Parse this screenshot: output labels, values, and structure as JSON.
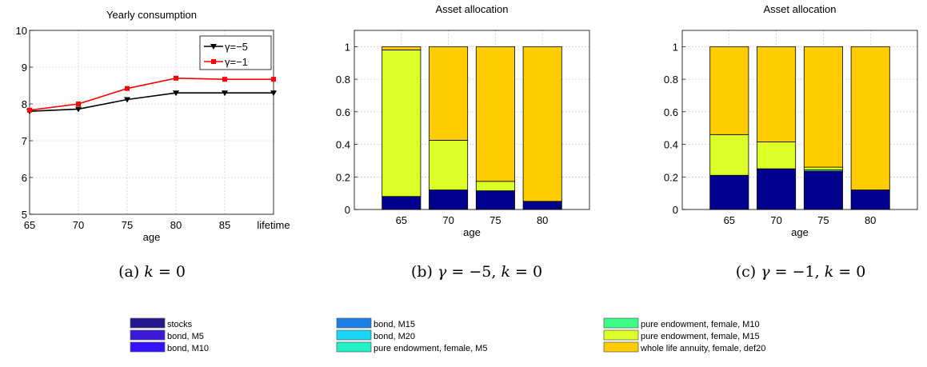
{
  "chart_data": [
    {
      "type": "line",
      "title": "Yearly consumption",
      "xlabel": "age",
      "ylabel": "",
      "categories": [
        "65",
        "70",
        "75",
        "80",
        "85",
        "lifetime"
      ],
      "ylim": [
        5,
        10
      ],
      "yticks": [
        "5",
        "6",
        "7",
        "8",
        "9",
        "10"
      ],
      "series": [
        {
          "name": "γ=−5",
          "color": "#000000",
          "marker": "triangle-down",
          "values": [
            7.8,
            7.86,
            8.12,
            8.3,
            8.3,
            8.3
          ]
        },
        {
          "name": "γ=−1",
          "color": "#ff0000",
          "marker": "square",
          "values": [
            7.83,
            8.0,
            8.42,
            8.7,
            8.67,
            8.67
          ]
        }
      ],
      "legend": "top-right",
      "grid": true,
      "caption": "(a) k = 0"
    },
    {
      "type": "bar",
      "stacked": true,
      "title": "Asset allocation",
      "xlabel": "age",
      "ylabel": "",
      "categories": [
        "65",
        "70",
        "75",
        "80"
      ],
      "ylim": [
        0,
        1.1
      ],
      "yticks": [
        "0",
        "0.2",
        "0.4",
        "0.6",
        "0.8",
        "1"
      ],
      "series": [
        {
          "name": "stocks",
          "color": "#00008f",
          "values": [
            0.08,
            0.12,
            0.115,
            0.05
          ]
        },
        {
          "name": "pure endowment, female, M15",
          "color": "#dcff28",
          "values": [
            0.9,
            0.305,
            0.058,
            0.0
          ]
        },
        {
          "name": "whole life annuity, female, def20",
          "color": "#ffcc00",
          "values": [
            0.02,
            0.575,
            0.827,
            0.95
          ]
        }
      ],
      "grid": true,
      "caption": "(b) γ = −5, k = 0"
    },
    {
      "type": "bar",
      "stacked": true,
      "title": "Asset allocation",
      "xlabel": "age",
      "ylabel": "",
      "categories": [
        "65",
        "70",
        "75",
        "80"
      ],
      "ylim": [
        0,
        1.1
      ],
      "yticks": [
        "0",
        "0.2",
        "0.4",
        "0.6",
        "0.8",
        "1"
      ],
      "series": [
        {
          "name": "stocks",
          "color": "#00008f",
          "values": [
            0.21,
            0.25,
            0.235,
            0.12
          ]
        },
        {
          "name": "pure endowment, female, M10",
          "color": "#3cff8a",
          "values": [
            0.0,
            0.0,
            0.008,
            0.0
          ]
        },
        {
          "name": "pure endowment, female, M15",
          "color": "#dcff28",
          "values": [
            0.25,
            0.165,
            0.017,
            0.0
          ]
        },
        {
          "name": "whole life annuity, female, def20",
          "color": "#ffcc00",
          "values": [
            0.54,
            0.585,
            0.74,
            0.88
          ]
        }
      ],
      "grid": true,
      "caption": "(c) γ = −1, k = 0"
    }
  ],
  "legend_items": [
    {
      "label": "stocks",
      "color": "#26168f"
    },
    {
      "label": "bond, M5",
      "color": "#3a18d8"
    },
    {
      "label": "bond, M10",
      "color": "#3212ff"
    },
    {
      "label": "bond, M15",
      "color": "#1a7fe6"
    },
    {
      "label": "bond, M20",
      "color": "#19d6f2"
    },
    {
      "label": "pure endowment, female, M5",
      "color": "#22f2c8"
    },
    {
      "label": "pure endowment, female, M10",
      "color": "#3cff8a"
    },
    {
      "label": "pure endowment, female, M15",
      "color": "#dcff28"
    },
    {
      "label": "whole life annuity, female, def20",
      "color": "#ffcc00"
    }
  ]
}
